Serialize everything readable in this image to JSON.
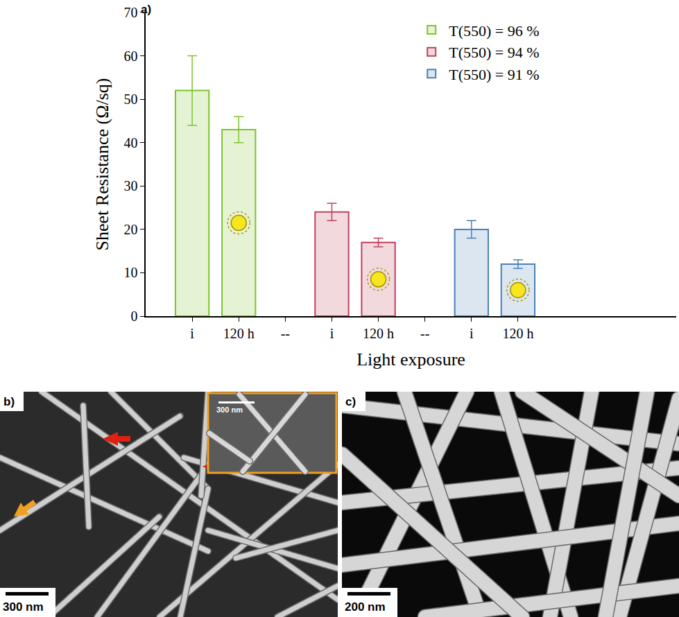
{
  "chart_data": {
    "type": "bar",
    "annotations": [
      "a)"
    ],
    "x_label": "Light exposure",
    "y_label": "Sheet Resistance (Ω/sq)",
    "categories": [
      "i",
      "120 h",
      "--",
      "i",
      "120 h",
      "--",
      "i",
      "120 h"
    ],
    "series": [
      {
        "name": "T(550) = 96 %",
        "color": "#7cc42a",
        "values": [
          52,
          43,
          null,
          null,
          null,
          null,
          null,
          null
        ],
        "errors": [
          8,
          3,
          null,
          null,
          null,
          null,
          null,
          null
        ]
      },
      {
        "name": "T(550) = 94 %",
        "color": "#c0405a",
        "values": [
          null,
          null,
          null,
          24,
          17,
          null,
          null,
          null
        ],
        "errors": [
          null,
          null,
          null,
          2,
          1,
          null,
          null,
          null
        ]
      },
      {
        "name": "T(550) = 91 %",
        "color": "#4a80b8",
        "values": [
          null,
          null,
          null,
          null,
          null,
          null,
          20,
          12
        ],
        "errors": [
          null,
          null,
          null,
          null,
          null,
          null,
          2,
          1
        ]
      }
    ],
    "ylim": [
      0,
      70
    ],
    "yticks": [
      0,
      10,
      20,
      30,
      40,
      50,
      60,
      70
    ],
    "grid": false,
    "legend": "upper right",
    "stacked": false
  },
  "images": [
    {
      "label": "b)",
      "scale_bar": "300 nm",
      "inset": {
        "scale_bar": "300 nm"
      }
    },
    {
      "label": "c)",
      "scale_bar": "200 nm"
    }
  ]
}
